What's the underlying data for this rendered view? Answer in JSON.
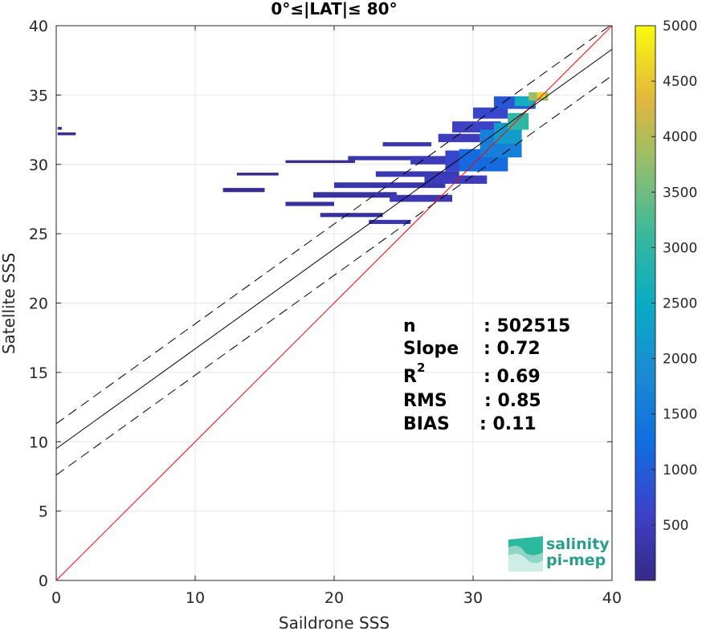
{
  "chart_data": {
    "type": "heatmap",
    "title": "0°≤|LAT|≤ 80°",
    "xlabel": "Saildrone SSS",
    "ylabel": "Satellite SSS",
    "xlim": [
      0,
      40
    ],
    "ylim": [
      0,
      40
    ],
    "x_ticks": [
      "0",
      "10",
      "20",
      "30",
      "40"
    ],
    "y_ticks": [
      "0",
      "5",
      "10",
      "15",
      "20",
      "25",
      "30",
      "35",
      "40"
    ],
    "grid": true,
    "colorbar": {
      "colormap": "parula",
      "range": [
        0,
        5000
      ],
      "ticks": [
        "500",
        "1000",
        "1500",
        "2000",
        "2500",
        "3000",
        "3500",
        "4000",
        "4500",
        "5000"
      ]
    },
    "lines": [
      {
        "kind": "identity",
        "slope": 1.0,
        "intercept": 0.0,
        "color": "#ff0000",
        "style": "solid"
      },
      {
        "kind": "regression",
        "slope": 0.72,
        "intercept": 9.5,
        "color": "#000000",
        "style": "solid"
      },
      {
        "kind": "regression-upper",
        "slope": 0.72,
        "intercept": 11.3,
        "color": "#000000",
        "style": "dashed"
      },
      {
        "kind": "regression-lower",
        "slope": 0.72,
        "intercept": 7.6,
        "color": "#000000",
        "style": "dashed"
      }
    ],
    "density_regions": [
      {
        "x": 0.1,
        "y": 32.1,
        "w": 1.3,
        "h": 0.2,
        "count": 80
      },
      {
        "x": 0.1,
        "y": 32.5,
        "w": 0.3,
        "h": 0.2,
        "count": 60
      },
      {
        "x": 12.0,
        "y": 28.0,
        "w": 3.0,
        "h": 0.3,
        "count": 60
      },
      {
        "x": 13.0,
        "y": 29.2,
        "w": 3.0,
        "h": 0.2,
        "count": 40
      },
      {
        "x": 16.5,
        "y": 30.1,
        "w": 5.0,
        "h": 0.2,
        "count": 120
      },
      {
        "x": 16.5,
        "y": 27.0,
        "w": 3.5,
        "h": 0.3,
        "count": 200
      },
      {
        "x": 18.5,
        "y": 27.6,
        "w": 6.0,
        "h": 0.4,
        "count": 250
      },
      {
        "x": 19.0,
        "y": 26.2,
        "w": 4.5,
        "h": 0.3,
        "count": 200
      },
      {
        "x": 20.0,
        "y": 28.3,
        "w": 8.0,
        "h": 0.4,
        "count": 300
      },
      {
        "x": 21.0,
        "y": 30.3,
        "w": 6.0,
        "h": 0.3,
        "count": 300
      },
      {
        "x": 22.5,
        "y": 25.7,
        "w": 3.0,
        "h": 0.3,
        "count": 350
      },
      {
        "x": 23.0,
        "y": 29.1,
        "w": 6.0,
        "h": 0.4,
        "count": 400
      },
      {
        "x": 23.5,
        "y": 31.3,
        "w": 3.5,
        "h": 0.3,
        "count": 300
      },
      {
        "x": 24.0,
        "y": 27.3,
        "w": 4.5,
        "h": 0.5,
        "count": 400
      },
      {
        "x": 25.5,
        "y": 30.0,
        "w": 4.0,
        "h": 0.6,
        "count": 450
      },
      {
        "x": 26.5,
        "y": 28.6,
        "w": 4.5,
        "h": 0.6,
        "count": 500
      },
      {
        "x": 27.5,
        "y": 31.6,
        "w": 3.0,
        "h": 0.6,
        "count": 500
      },
      {
        "x": 28.0,
        "y": 29.5,
        "w": 4.5,
        "h": 1.5,
        "count": 700
      },
      {
        "x": 28.5,
        "y": 32.3,
        "w": 3.5,
        "h": 0.8,
        "count": 600
      },
      {
        "x": 29.0,
        "y": 29.5,
        "w": 3.5,
        "h": 1.6,
        "count": 1200
      },
      {
        "x": 30.0,
        "y": 33.3,
        "w": 2.5,
        "h": 0.8,
        "count": 700
      },
      {
        "x": 30.5,
        "y": 30.5,
        "w": 3.0,
        "h": 2.0,
        "count": 1600
      },
      {
        "x": 31.5,
        "y": 31.5,
        "w": 2.0,
        "h": 1.5,
        "count": 2200
      },
      {
        "x": 31.5,
        "y": 34.0,
        "w": 3.0,
        "h": 0.9,
        "count": 900
      },
      {
        "x": 32.5,
        "y": 32.5,
        "w": 1.5,
        "h": 1.2,
        "count": 3000
      },
      {
        "x": 33.0,
        "y": 34.2,
        "w": 1.5,
        "h": 0.7,
        "count": 2600
      },
      {
        "x": 34.0,
        "y": 34.6,
        "w": 1.4,
        "h": 0.6,
        "count": 3800
      },
      {
        "x": 34.6,
        "y": 34.8,
        "w": 0.6,
        "h": 0.4,
        "count": 4600
      }
    ],
    "stats": {
      "labels": [
        "n",
        "Slope",
        "R",
        "RMS",
        "BIAS"
      ],
      "r_superscript": "2",
      "values": [
        ": 502515",
        ": 0.72",
        ": 0.69",
        ": 0.85",
        ": 0.11"
      ]
    },
    "logo": {
      "line1": "salinity",
      "line2": "pi-mep"
    }
  }
}
